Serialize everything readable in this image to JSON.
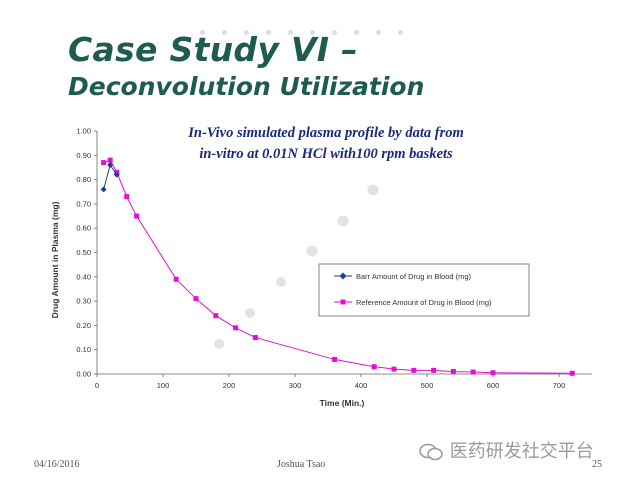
{
  "slide": {
    "title_line1": "Case Study VI –",
    "title_line2": "Deconvolution Utilization",
    "footer_date": "04/16/2016",
    "footer_author": "Joshua Tsao",
    "footer_page": "25",
    "watermark_text": "医药研发社交平台"
  },
  "chart_data": {
    "type": "line",
    "title_line1": "In-Vivo simulated plasma profile by data from",
    "title_line2": "in-vitro at 0.01N HCl with100 rpm baskets",
    "xlabel": "Time (Min.)",
    "ylabel": "Drug Amount in Plasma (mg)",
    "xlim": [
      0,
      750
    ],
    "ylim": [
      0,
      1.0
    ],
    "x_ticks": [
      0,
      100,
      200,
      300,
      400,
      500,
      600,
      700
    ],
    "y_ticks": [
      0,
      0.1,
      0.2,
      0.3,
      0.4,
      0.5,
      0.6,
      0.7,
      0.8,
      0.9,
      1.0
    ],
    "y_tick_labels": [
      "0.00",
      "0.10",
      "0.20",
      "0.30",
      "0.40",
      "0.50",
      "0.60",
      "0.70",
      "0.80",
      "0.90",
      "1.00"
    ],
    "legend_position": "center-right",
    "series": [
      {
        "name": "Barr Amount of Drug in Blood (mg)",
        "color": "#1f3f8f",
        "marker": "diamond",
        "x": [
          10,
          20,
          30
        ],
        "y": [
          0.76,
          0.86,
          0.82
        ]
      },
      {
        "name": "Reference Amount of Drug in Blood (mg)",
        "color": "#e010d8",
        "marker": "square",
        "x": [
          10,
          20,
          30,
          45,
          60,
          120,
          150,
          180,
          210,
          240,
          360,
          420,
          450,
          480,
          510,
          540,
          570,
          600,
          720
        ],
        "y": [
          0.87,
          0.88,
          0.83,
          0.73,
          0.65,
          0.39,
          0.31,
          0.24,
          0.19,
          0.15,
          0.06,
          0.03,
          0.02,
          0.015,
          0.015,
          0.01,
          0.008,
          0.005,
          0.003
        ]
      }
    ]
  }
}
